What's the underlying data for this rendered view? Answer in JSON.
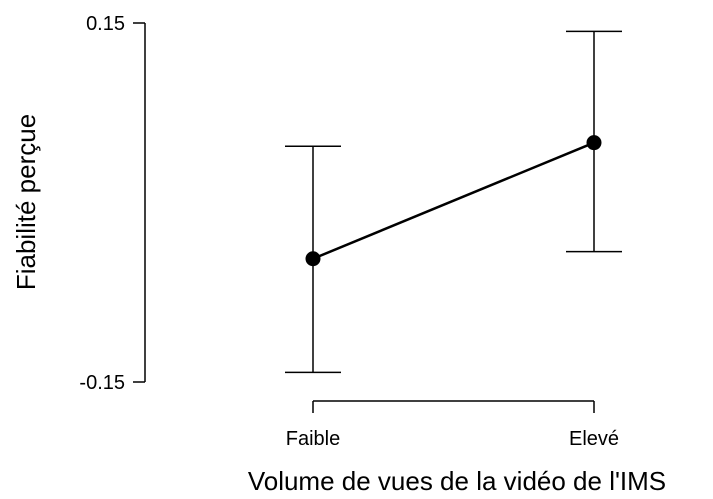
{
  "chart_data": {
    "type": "line",
    "title": "",
    "xlabel": "Volume de vues de la vidéo de l'IMS",
    "ylabel": "Fiabilité perçue",
    "categories": [
      "Faible",
      "Elevé"
    ],
    "ylim": [
      -0.15,
      0.15
    ],
    "yticks": [
      -0.15,
      0.15
    ],
    "ytick_labels": [
      "-0.15",
      "0.15"
    ],
    "grid": false,
    "legend": "none",
    "series": [
      {
        "values": [
          -0.047,
          0.05
        ],
        "error_low": [
          -0.142,
          -0.041
        ],
        "error_high": [
          0.047,
          0.143
        ]
      }
    ],
    "colors": {
      "line": "#000000",
      "marker": "#000000",
      "background": "#ffffff"
    }
  }
}
